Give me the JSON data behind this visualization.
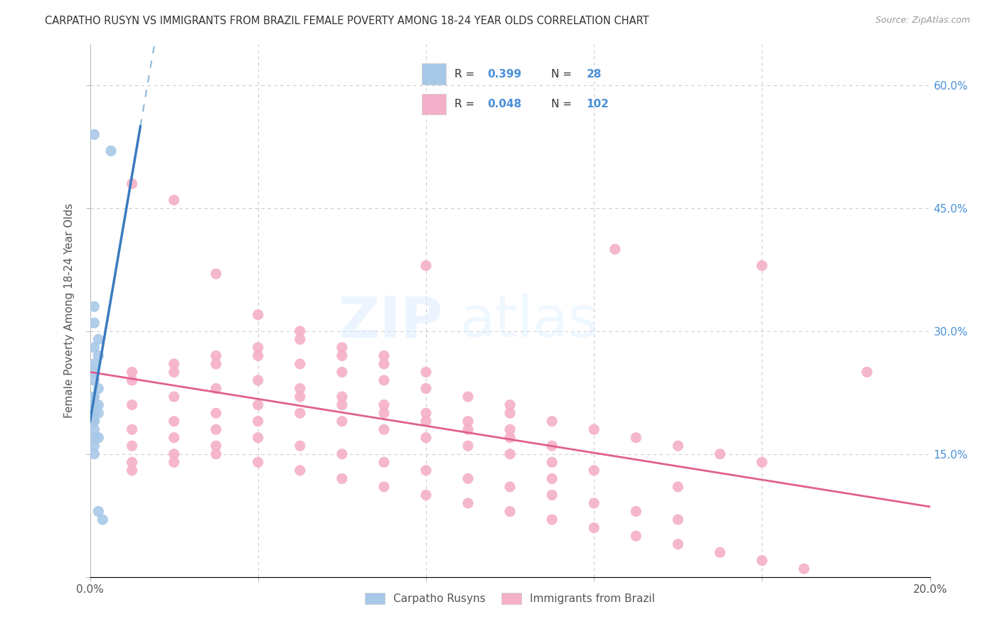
{
  "title": "CARPATHO RUSYN VS IMMIGRANTS FROM BRAZIL FEMALE POVERTY AMONG 18-24 YEAR OLDS CORRELATION CHART",
  "source": "Source: ZipAtlas.com",
  "ylabel": "Female Poverty Among 18-24 Year Olds",
  "xlim": [
    0.0,
    0.2
  ],
  "ylim": [
    0.0,
    0.65
  ],
  "background_color": "#ffffff",
  "grid_color": "#cccccc",
  "blue_scatter_color": "#a8c8e8",
  "pink_scatter_color": "#f4b0c8",
  "blue_line_color": "#3a7abf",
  "pink_line_color": "#e06090",
  "blue_line_dash_color": "#90b8d8",
  "legend_label_blue": "Carpatho Rusyns",
  "legend_label_pink": "Immigrants from Brazil",
  "watermark_zip_color": "#dde8f0",
  "watermark_atlas_color": "#dde8f0",
  "blue_x": [
    0.001,
    0.005,
    0.001,
    0.001,
    0.002,
    0.001,
    0.002,
    0.001,
    0.001,
    0.001,
    0.002,
    0.001,
    0.001,
    0.001,
    0.002,
    0.001,
    0.001,
    0.001,
    0.002,
    0.001,
    0.001,
    0.001,
    0.002,
    0.001,
    0.001,
    0.001,
    0.002,
    0.003
  ],
  "blue_y": [
    0.54,
    0.52,
    0.33,
    0.31,
    0.29,
    0.28,
    0.27,
    0.26,
    0.25,
    0.24,
    0.23,
    0.22,
    0.22,
    0.21,
    0.21,
    0.21,
    0.2,
    0.2,
    0.2,
    0.19,
    0.19,
    0.18,
    0.17,
    0.17,
    0.16,
    0.15,
    0.08,
    0.07
  ],
  "pink_x": [
    0.01,
    0.02,
    0.03,
    0.04,
    0.05,
    0.06,
    0.07,
    0.08,
    0.01,
    0.02,
    0.03,
    0.04,
    0.05,
    0.06,
    0.07,
    0.08,
    0.01,
    0.02,
    0.03,
    0.04,
    0.05,
    0.06,
    0.07,
    0.08,
    0.09,
    0.1,
    0.01,
    0.02,
    0.03,
    0.04,
    0.05,
    0.06,
    0.07,
    0.08,
    0.09,
    0.1,
    0.01,
    0.02,
    0.03,
    0.04,
    0.05,
    0.06,
    0.07,
    0.08,
    0.09,
    0.1,
    0.11,
    0.01,
    0.02,
    0.03,
    0.04,
    0.05,
    0.06,
    0.07,
    0.08,
    0.09,
    0.1,
    0.11,
    0.12,
    0.01,
    0.02,
    0.03,
    0.04,
    0.05,
    0.06,
    0.07,
    0.08,
    0.09,
    0.1,
    0.11,
    0.12,
    0.13,
    0.14,
    0.01,
    0.02,
    0.03,
    0.04,
    0.05,
    0.06,
    0.07,
    0.08,
    0.09,
    0.1,
    0.11,
    0.12,
    0.13,
    0.14,
    0.15,
    0.16,
    0.17,
    0.1,
    0.11,
    0.12,
    0.13,
    0.14,
    0.15,
    0.16,
    0.125,
    0.16,
    0.185,
    0.14,
    0.11
  ],
  "pink_y": [
    0.48,
    0.46,
    0.37,
    0.32,
    0.3,
    0.28,
    0.27,
    0.38,
    0.25,
    0.26,
    0.27,
    0.28,
    0.29,
    0.27,
    0.26,
    0.25,
    0.24,
    0.25,
    0.26,
    0.27,
    0.26,
    0.25,
    0.24,
    0.23,
    0.22,
    0.21,
    0.21,
    0.22,
    0.23,
    0.24,
    0.23,
    0.22,
    0.21,
    0.2,
    0.19,
    0.18,
    0.18,
    0.19,
    0.2,
    0.21,
    0.22,
    0.21,
    0.2,
    0.19,
    0.18,
    0.17,
    0.16,
    0.16,
    0.17,
    0.18,
    0.19,
    0.2,
    0.19,
    0.18,
    0.17,
    0.16,
    0.15,
    0.14,
    0.13,
    0.14,
    0.15,
    0.16,
    0.17,
    0.16,
    0.15,
    0.14,
    0.13,
    0.12,
    0.11,
    0.1,
    0.09,
    0.08,
    0.07,
    0.13,
    0.14,
    0.15,
    0.14,
    0.13,
    0.12,
    0.11,
    0.1,
    0.09,
    0.08,
    0.07,
    0.06,
    0.05,
    0.04,
    0.03,
    0.02,
    0.01,
    0.2,
    0.19,
    0.18,
    0.17,
    0.16,
    0.15,
    0.14,
    0.4,
    0.38,
    0.25,
    0.11,
    0.12
  ]
}
